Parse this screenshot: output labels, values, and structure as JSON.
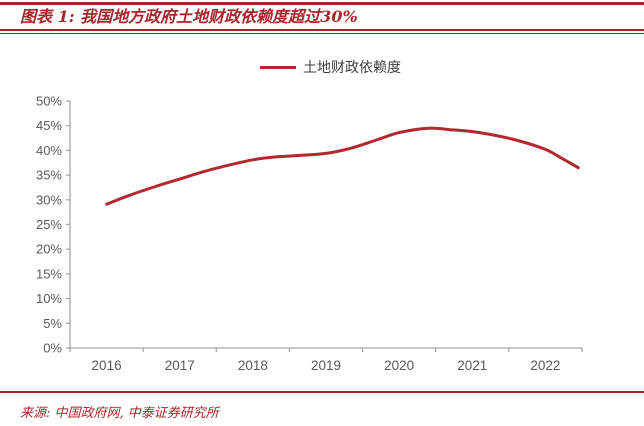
{
  "header": {
    "title": "图表 1: 我国地方政府土地财政依赖度超过30%"
  },
  "legend": {
    "label": "土地财政依赖度"
  },
  "footer": {
    "source": "来源: 中国政府网, 中泰证券研究所"
  },
  "colors": {
    "accent_red": "#A5262B",
    "line_red": "#B2282F",
    "axis_gray": "#A6A6A6",
    "tick_label_gray": "#595959",
    "legend_text": "#404040"
  },
  "chart_data": {
    "type": "line",
    "title": "图表 1: 我国地方政府土地财政依赖度超过30%",
    "xlabel": "",
    "ylabel": "",
    "grid": false,
    "legend_position": "top-center",
    "x_tick_labels": [
      "2016",
      "2017",
      "2018",
      "2019",
      "2020",
      "2021",
      "2022"
    ],
    "y_tick_labels": [
      "0%",
      "5%",
      "10%",
      "15%",
      "20%",
      "25%",
      "30%",
      "35%",
      "40%",
      "45%",
      "50%"
    ],
    "ylim": [
      0,
      50
    ],
    "y_step": 5,
    "xlim": [
      2016,
      2023
    ],
    "series": [
      {
        "name": "土地财政依赖度",
        "unit": "%",
        "x": [
          2016.0,
          2016.33,
          2016.67,
          2017.0,
          2017.33,
          2017.67,
          2018.0,
          2018.33,
          2018.67,
          2019.0,
          2019.33,
          2019.67,
          2020.0,
          2020.4,
          2020.7,
          2021.0,
          2021.33,
          2021.67,
          2022.0,
          2022.2,
          2022.45
        ],
        "values": [
          29.1,
          31.0,
          32.7,
          34.2,
          35.7,
          37.0,
          38.1,
          38.7,
          39.0,
          39.4,
          40.4,
          42.0,
          43.6,
          44.5,
          44.2,
          43.8,
          43.0,
          41.8,
          40.2,
          38.6,
          36.5
        ]
      }
    ]
  }
}
